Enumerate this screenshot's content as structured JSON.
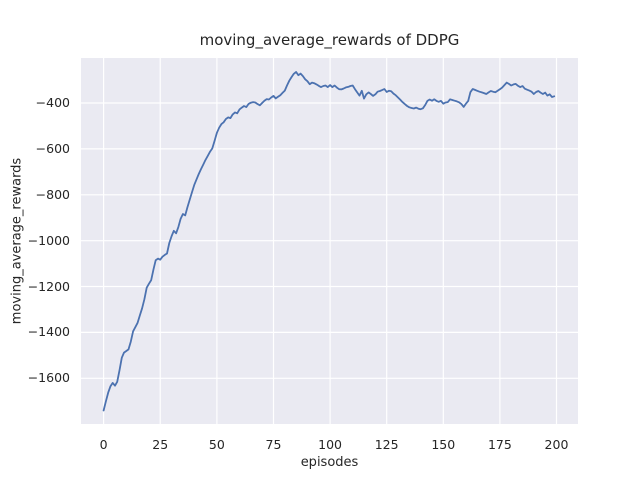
{
  "figure": {
    "title": "moving_average_rewards of DDPG",
    "xlabel": "episodes",
    "ylabel": "moving_average_rewards"
  },
  "chart_data": {
    "type": "line",
    "title": "moving_average_rewards of DDPG",
    "xlabel": "episodes",
    "ylabel": "moving_average_rewards",
    "xlim": [
      -10,
      209.5
    ],
    "ylim": [
      -1799,
      -204
    ],
    "grid": true,
    "legend": false,
    "style": "seaborn-darkgrid",
    "plot_bg": "#EAEAF2",
    "grid_color": "#FFFFFF",
    "line_color": "#4C72B0",
    "text_color": "#262626",
    "xticks": {
      "values": [
        0,
        25,
        50,
        75,
        100,
        125,
        150,
        175,
        200
      ],
      "labels": [
        "0",
        "25",
        "50",
        "75",
        "100",
        "125",
        "150",
        "175",
        "200"
      ]
    },
    "yticks": {
      "values": [
        -400,
        -600,
        -800,
        -1000,
        -1200,
        -1400,
        -1600
      ],
      "labels": [
        "−400",
        "−600",
        "−800",
        "−1000",
        "−1200",
        "−1400",
        "−1600"
      ]
    },
    "series": [
      {
        "name": "moving_average_rewards",
        "x_start": 0,
        "x_step": 1,
        "values": [
          -1740,
          -1700,
          -1662,
          -1635,
          -1620,
          -1632,
          -1615,
          -1565,
          -1510,
          -1488,
          -1481,
          -1474,
          -1440,
          -1395,
          -1377,
          -1358,
          -1325,
          -1295,
          -1255,
          -1205,
          -1188,
          -1172,
          -1125,
          -1085,
          -1078,
          -1083,
          -1070,
          -1062,
          -1056,
          -1010,
          -980,
          -957,
          -968,
          -940,
          -905,
          -884,
          -890,
          -855,
          -822,
          -790,
          -758,
          -733,
          -710,
          -688,
          -668,
          -648,
          -630,
          -612,
          -598,
          -565,
          -530,
          -508,
          -492,
          -484,
          -470,
          -463,
          -466,
          -450,
          -441,
          -445,
          -428,
          -420,
          -413,
          -418,
          -404,
          -399,
          -396,
          -398,
          -405,
          -410,
          -400,
          -390,
          -383,
          -385,
          -376,
          -369,
          -380,
          -373,
          -366,
          -356,
          -346,
          -324,
          -303,
          -287,
          -273,
          -265,
          -279,
          -272,
          -283,
          -297,
          -305,
          -318,
          -311,
          -314,
          -319,
          -325,
          -331,
          -326,
          -324,
          -331,
          -322,
          -331,
          -324,
          -333,
          -340,
          -341,
          -337,
          -332,
          -330,
          -326,
          -324,
          -340,
          -354,
          -368,
          -347,
          -381,
          -362,
          -354,
          -361,
          -369,
          -362,
          -351,
          -348,
          -344,
          -339,
          -352,
          -347,
          -349,
          -359,
          -366,
          -376,
          -386,
          -396,
          -405,
          -413,
          -419,
          -422,
          -424,
          -420,
          -425,
          -427,
          -423,
          -409,
          -391,
          -385,
          -390,
          -384,
          -391,
          -395,
          -391,
          -403,
          -398,
          -396,
          -384,
          -387,
          -390,
          -393,
          -397,
          -405,
          -417,
          -403,
          -391,
          -353,
          -339,
          -343,
          -347,
          -351,
          -354,
          -357,
          -361,
          -354,
          -348,
          -351,
          -353,
          -347,
          -340,
          -333,
          -322,
          -311,
          -317,
          -324,
          -319,
          -317,
          -325,
          -331,
          -326,
          -338,
          -342,
          -346,
          -351,
          -361,
          -352,
          -348,
          -355,
          -361,
          -355,
          -368,
          -362,
          -374,
          -371
        ]
      }
    ]
  }
}
